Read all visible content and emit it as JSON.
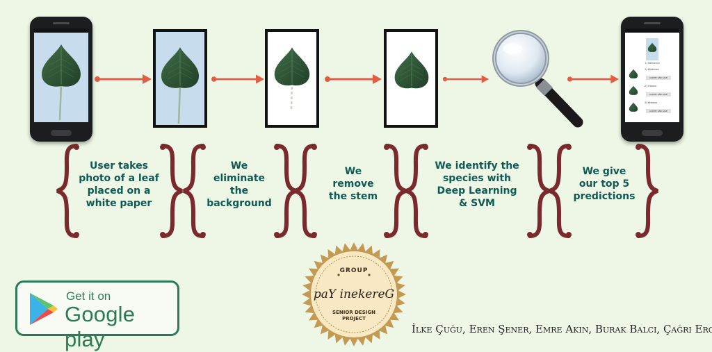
{
  "steps": [
    {
      "lines": [
        "User takes",
        "photo of a leaf",
        "placed on a",
        "white paper"
      ]
    },
    {
      "lines": [
        "We",
        "eliminate",
        "the",
        "background"
      ]
    },
    {
      "lines": [
        "We",
        "remove",
        "the stem"
      ]
    },
    {
      "lines": [
        "We identify the",
        "species with",
        "Deep Learning",
        "& SVM"
      ]
    },
    {
      "lines": [
        "We give",
        "our top 5",
        "predictions"
      ]
    }
  ],
  "badge": {
    "top": "GROUP",
    "name": "paY inekereG",
    "bottom1": "SENIOR DESIGN",
    "bottom2": "PROJECT"
  },
  "google_play": {
    "line1": "Get it on",
    "line2": "Google play"
  },
  "authors": "İlke Çuğu, Eren Şener, Emre Akın, Burak Balcı, Çağrı Erciyes",
  "result_screen": {
    "header_species": "1) Kökkarası",
    "rows": [
      {
        "label": "1) Kökkarası",
        "button": "ACCEPT AND SAVE"
      },
      {
        "label": "2) Ihlamur",
        "button": "ACCEPT AND SAVE"
      },
      {
        "label": "3) Kestane",
        "button": "ACCEPT AND SAVE"
      }
    ]
  },
  "colors": {
    "background": "#eef7e6",
    "text": "#0f5a52",
    "brace": "#7a2a2c",
    "arrow": "#e35d45",
    "leaf": "#2f5a36",
    "badge_ring": "#c49a52",
    "badge_fill": "#f8e9c4",
    "google_play_green": "#2d7a57"
  },
  "icons": [
    "leaf",
    "magnifying-glass-icon",
    "google-play-logo-icon",
    "right-arrow-icon",
    "curly-brace-icon"
  ]
}
